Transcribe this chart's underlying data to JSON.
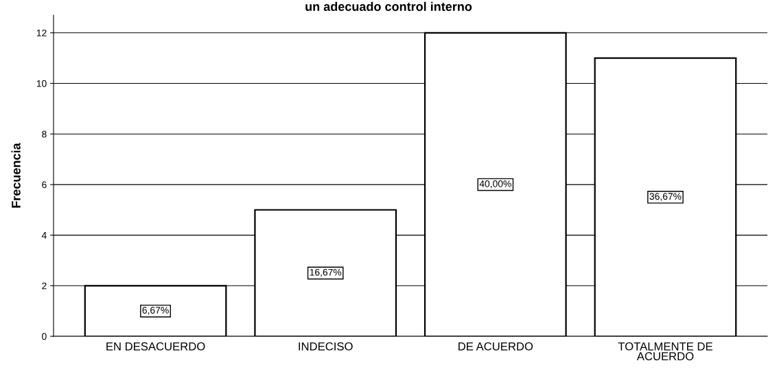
{
  "chart_data": {
    "type": "bar",
    "title": "un adecuado control interno",
    "ylabel": "Frecuencia",
    "categories": [
      "EN DESACUERDO",
      "INDECISO",
      "DE ACUERDO",
      "TOTALMENTE DE\nACUERDO"
    ],
    "values": [
      2,
      5,
      12,
      11
    ],
    "color": "#ffffff",
    "annotations": [
      "6,67%",
      "16,67%",
      "40,00%",
      "36,67%"
    ],
    "ylim": [
      0,
      12.7
    ],
    "yticks": [
      0,
      2,
      4,
      6,
      8,
      10,
      12
    ],
    "grid": "y"
  }
}
